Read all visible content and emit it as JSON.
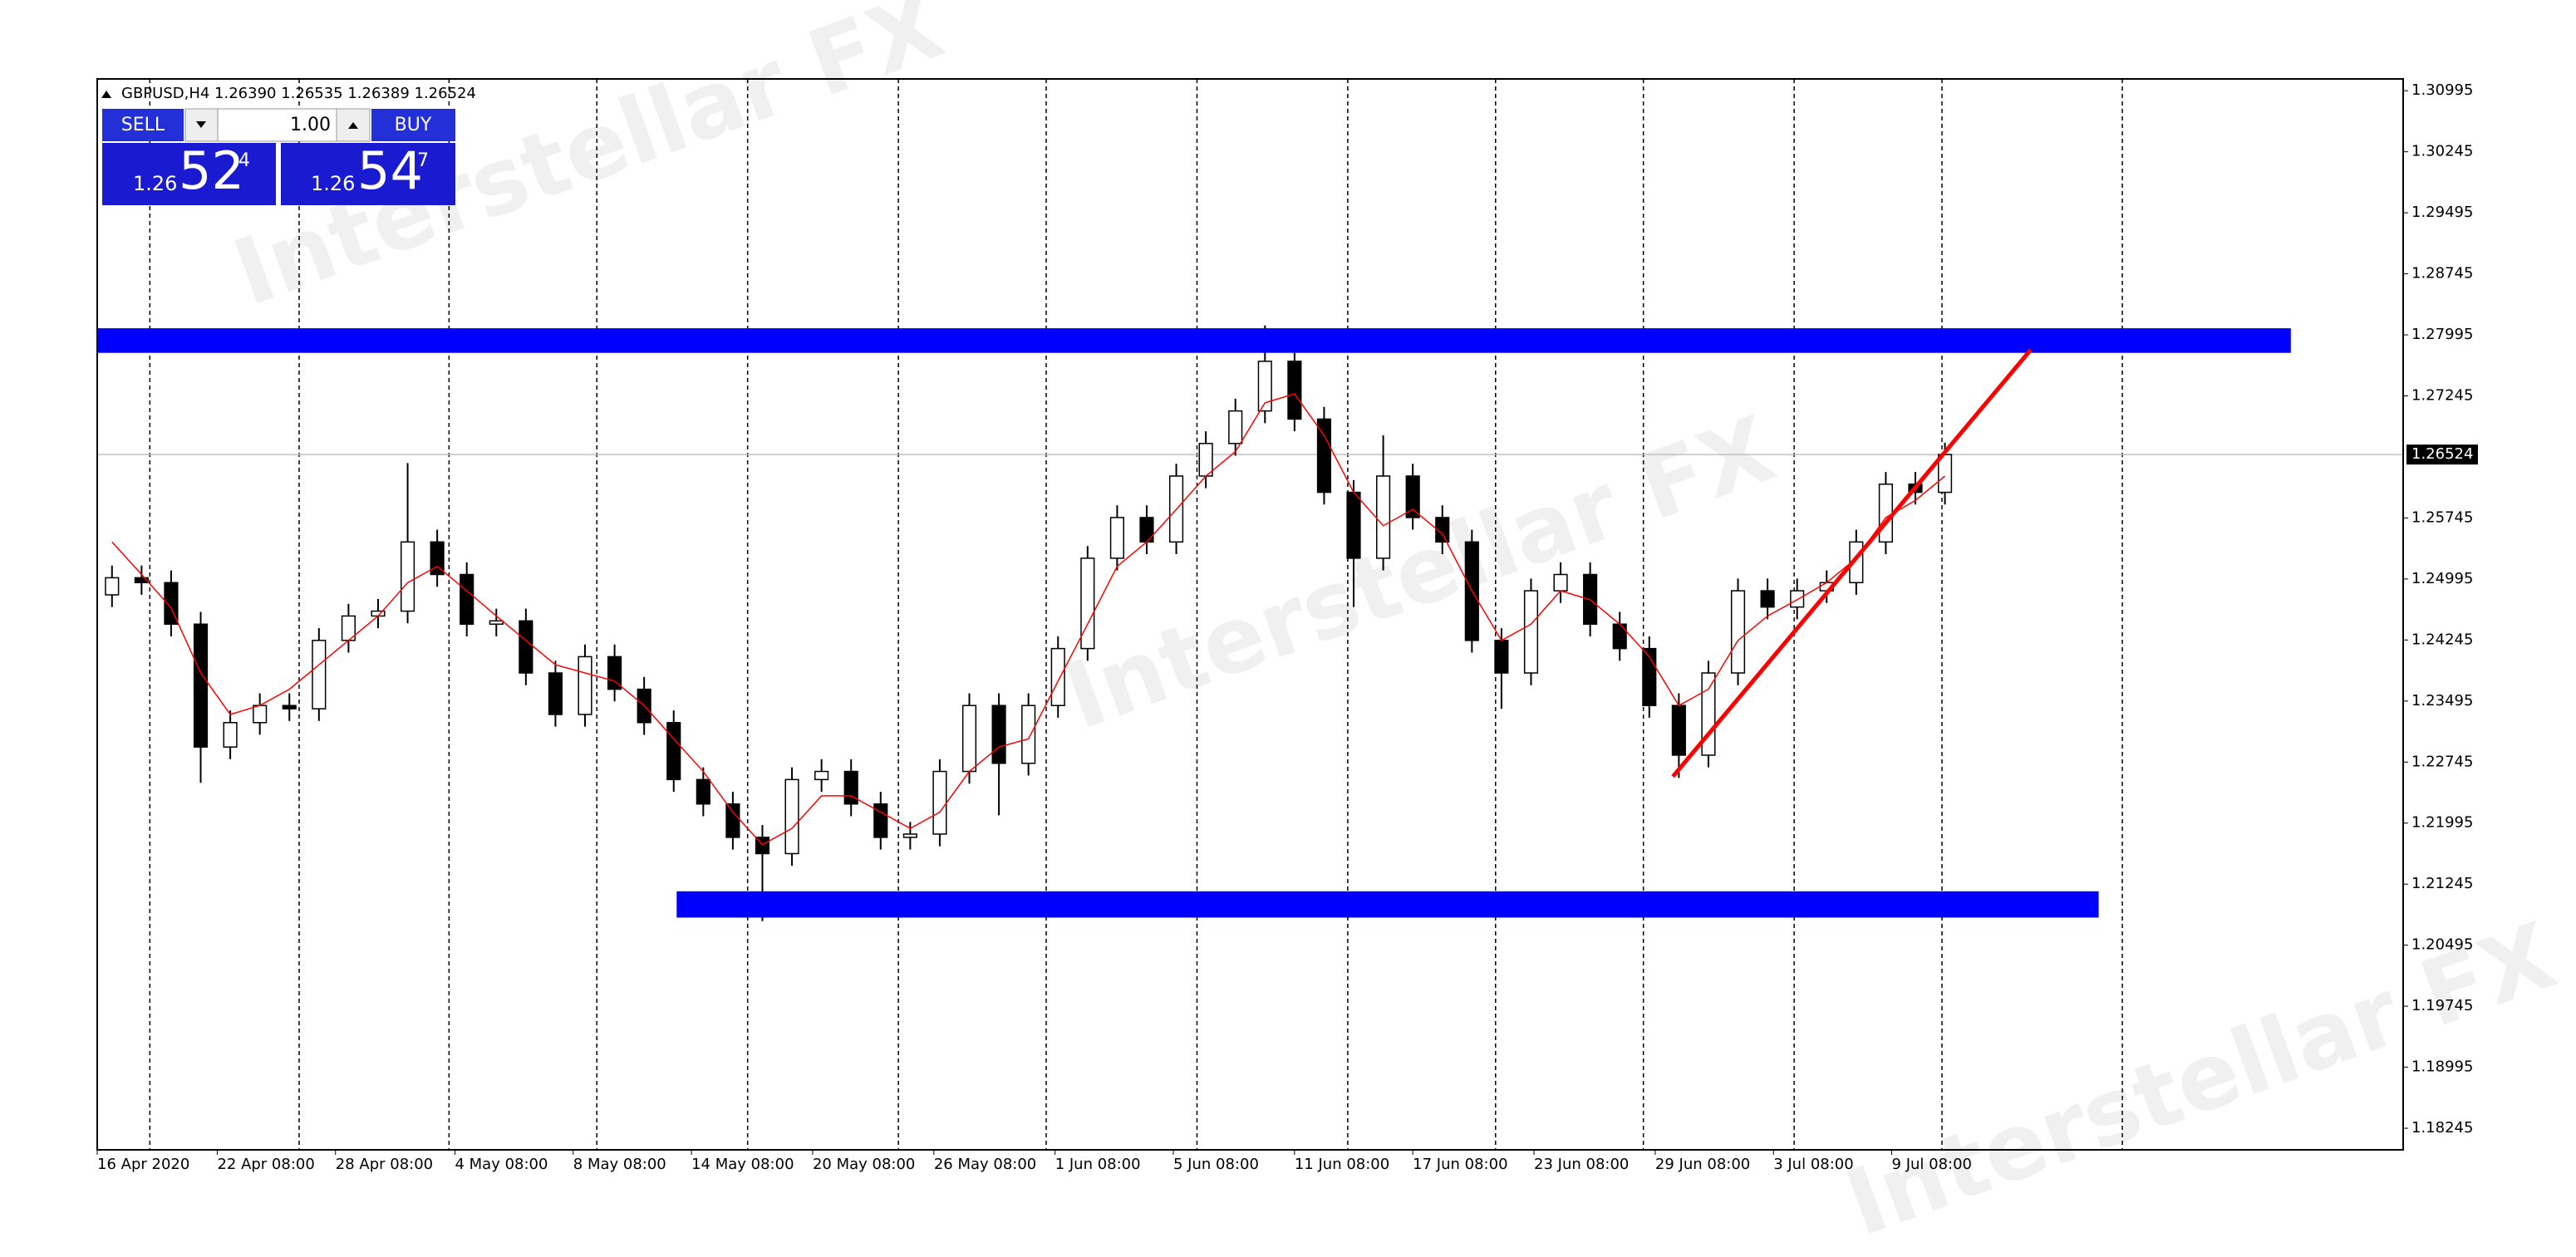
{
  "chart_data": {
    "type": "candlestick",
    "header": "GBPUSD,H4  1.26390 1.26535 1.26389 1.26524",
    "open": [
      1.248,
      1.2501,
      1.2495,
      1.2444,
      1.2293,
      1.2323,
      1.2344,
      1.234,
      1.2424,
      1.2454,
      1.246,
      1.2545,
      1.2505,
      1.2444,
      1.2448,
      1.2384,
      1.2333,
      1.2404,
      1.2364,
      1.2323,
      1.2253,
      1.2223,
      1.2182,
      1.2162,
      1.2253,
      1.2263,
      1.2223,
      1.2182,
      1.2186,
      1.2263,
      1.2344,
      1.2273,
      1.2344,
      1.2414,
      1.2525,
      1.2575,
      1.2545,
      1.2626,
      1.2666,
      1.2706,
      1.2767,
      1.2696,
      1.2606,
      1.2525,
      1.2626,
      1.2575,
      1.2545,
      1.2424,
      1.2384,
      1.2485,
      1.2505,
      1.2444,
      1.2414,
      1.2344,
      1.2283,
      1.2384,
      1.2485,
      1.2465,
      1.2485,
      1.2495,
      1.2545,
      1.2616,
      1.2606
    ],
    "high": [
      1.2516,
      1.2516,
      1.251,
      1.2459,
      1.2338,
      1.2359,
      1.2359,
      1.2439,
      1.2469,
      1.2475,
      1.2642,
      1.256,
      1.252,
      1.2463,
      1.2463,
      1.2399,
      1.2419,
      1.2419,
      1.2379,
      1.2338,
      1.2268,
      1.2238,
      1.2197,
      1.2268,
      1.2278,
      1.2278,
      1.2238,
      1.2201,
      1.2278,
      1.2359,
      1.2359,
      1.2359,
      1.2429,
      1.254,
      1.259,
      1.259,
      1.2641,
      1.2681,
      1.2721,
      1.2811,
      1.2782,
      1.2711,
      1.2621,
      1.2676,
      1.2641,
      1.259,
      1.256,
      1.2439,
      1.25,
      1.252,
      1.252,
      1.2459,
      1.2429,
      1.2359,
      1.2399,
      1.25,
      1.25,
      1.25,
      1.251,
      1.256,
      1.2631,
      1.2631,
      1.2667
    ],
    "low": [
      1.2465,
      1.248,
      1.2429,
      1.2249,
      1.2278,
      1.2308,
      1.2325,
      1.2325,
      1.2409,
      1.2439,
      1.2445,
      1.249,
      1.2429,
      1.2429,
      1.2369,
      1.2318,
      1.2318,
      1.2349,
      1.2308,
      1.2238,
      1.2208,
      1.2167,
      1.2079,
      1.2147,
      1.2238,
      1.2208,
      1.2167,
      1.2167,
      1.2171,
      1.2248,
      1.2209,
      1.2258,
      1.2329,
      1.2399,
      1.251,
      1.253,
      1.253,
      1.2611,
      1.2651,
      1.2691,
      1.2681,
      1.2591,
      1.2465,
      1.251,
      1.256,
      1.253,
      1.2409,
      1.234,
      1.2369,
      1.247,
      1.2429,
      1.2399,
      1.2329,
      1.2255,
      1.2268,
      1.2369,
      1.245,
      1.245,
      1.247,
      1.248,
      1.253,
      1.2591,
      1.2591
    ],
    "close": [
      1.2501,
      1.2495,
      1.2444,
      1.2293,
      1.2323,
      1.2344,
      1.234,
      1.2424,
      1.2454,
      1.246,
      1.2545,
      1.2505,
      1.2444,
      1.2448,
      1.2384,
      1.2333,
      1.2404,
      1.2364,
      1.2323,
      1.2253,
      1.2223,
      1.2182,
      1.2162,
      1.2253,
      1.2263,
      1.2223,
      1.2182,
      1.2186,
      1.2263,
      1.2344,
      1.2273,
      1.2344,
      1.2414,
      1.2525,
      1.2575,
      1.2545,
      1.2626,
      1.2666,
      1.2706,
      1.2767,
      1.2696,
      1.2606,
      1.2525,
      1.2626,
      1.2575,
      1.2545,
      1.2424,
      1.2384,
      1.2485,
      1.2505,
      1.2444,
      1.2414,
      1.2344,
      1.2283,
      1.2384,
      1.2485,
      1.2465,
      1.2485,
      1.2495,
      1.2545,
      1.2616,
      1.2606,
      1.26524
    ],
    "candle_colors": {
      "up": "#ffffff",
      "down": "#000000",
      "outline": "#000000"
    },
    "moving_average": {
      "color": "#ff0000",
      "values": [
        1.2545,
        1.2505,
        1.2464,
        1.2384,
        1.2333,
        1.2344,
        1.2364,
        1.2394,
        1.2424,
        1.2454,
        1.2495,
        1.2515,
        1.2485,
        1.2454,
        1.2424,
        1.2394,
        1.2384,
        1.2374,
        1.2344,
        1.2303,
        1.2263,
        1.2213,
        1.2173,
        1.2193,
        1.2233,
        1.2233,
        1.2213,
        1.2193,
        1.2213,
        1.2263,
        1.2293,
        1.2303,
        1.2374,
        1.2444,
        1.2515,
        1.2545,
        1.2585,
        1.2626,
        1.2656,
        1.2716,
        1.2727,
        1.2676,
        1.2606,
        1.2565,
        1.2585,
        1.2555,
        1.2485,
        1.2424,
        1.2444,
        1.2485,
        1.2474,
        1.2444,
        1.2404,
        1.2344,
        1.2364,
        1.2424,
        1.2454,
        1.2474,
        1.2495,
        1.2525,
        1.2575,
        1.2596,
        1.2626
      ]
    },
    "xlim": [
      0,
      78
    ],
    "xticks": [
      {
        "value": 0,
        "label": "16 Apr 2020"
      },
      {
        "value": 4.06,
        "label": "22 Apr 08:00"
      },
      {
        "value": 8.06,
        "label": "28 Apr 08:00"
      },
      {
        "value": 12.1,
        "label": "4 May 08:00"
      },
      {
        "value": 16.1,
        "label": "8 May 08:00"
      },
      {
        "value": 20.1,
        "label": "14 May 08:00"
      },
      {
        "value": 24.2,
        "label": "20 May 08:00"
      },
      {
        "value": 28.3,
        "label": "26 May 08:00"
      },
      {
        "value": 32.4,
        "label": "1 Jun 08:00"
      },
      {
        "value": 36.4,
        "label": "5 Jun 08:00"
      },
      {
        "value": 40.5,
        "label": "11 Jun 08:00"
      },
      {
        "value": 44.5,
        "label": "17 Jun 08:00"
      },
      {
        "value": 48.6,
        "label": "23 Jun 08:00"
      },
      {
        "value": 52.7,
        "label": "29 Jun 08:00"
      },
      {
        "value": 56.7,
        "label": "3 Jul 08:00"
      },
      {
        "value": 60.7,
        "label": "9 Jul 08:00"
      }
    ],
    "xgrid": [
      1.78,
      6.83,
      11.9,
      16.9,
      22.0,
      27.1,
      32.1,
      37.2,
      42.3,
      47.3,
      52.3,
      57.4,
      62.4,
      68.5
    ],
    "ylim": [
      1.1798,
      1.3114
    ],
    "yticks": [
      1.30995,
      1.30245,
      1.29495,
      1.28745,
      1.27995,
      1.27245,
      1.25745,
      1.24995,
      1.24245,
      1.23495,
      1.22745,
      1.21995,
      1.21245,
      1.20495,
      1.19745,
      1.18995,
      1.18245
    ],
    "current_price": 1.26524,
    "shapes": [
      {
        "type": "rectangle",
        "x": [
          0,
          74.2
        ],
        "y": [
          1.27774,
          1.28076
        ],
        "color": "#0000ff"
      },
      {
        "type": "rectangle",
        "x": [
          19.6,
          67.7
        ],
        "y": [
          1.20834,
          1.21157
        ],
        "color": "#0000ff"
      },
      {
        "type": "trendline",
        "x": [
          53.3,
          65.4
        ],
        "y": [
          1.22568,
          1.2781
        ],
        "color": "#ff0000"
      }
    ]
  },
  "trade_panel": {
    "sell": "SELL",
    "buy": "BUY",
    "lot": "1.00",
    "bid": {
      "big": "1.26",
      "pips": "52",
      "point": "4"
    },
    "ask": {
      "big": "1.26",
      "pips": "54",
      "point": "7"
    }
  },
  "watermark": "Interstellar FX"
}
